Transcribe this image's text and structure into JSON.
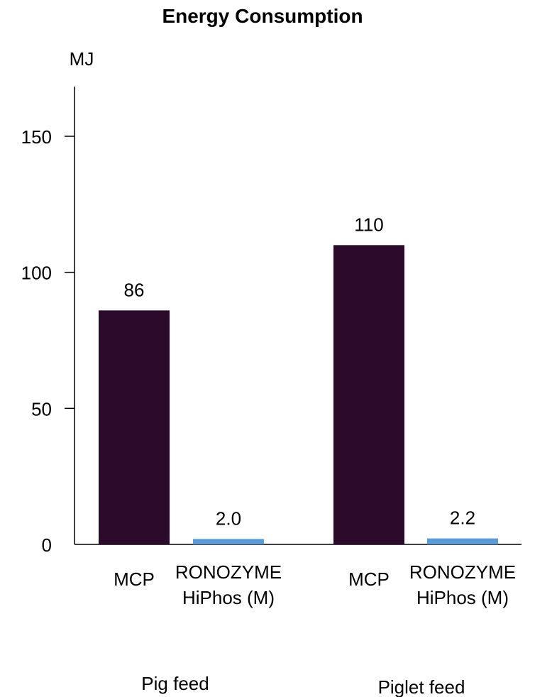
{
  "chart_data": {
    "type": "bar",
    "title": "Energy Consumption",
    "ylabel": "MJ",
    "ylim": [
      0,
      175
    ],
    "yticks": [
      0,
      50,
      100,
      150
    ],
    "groups": [
      {
        "name": "Pig feed",
        "bars": [
          {
            "label": [
              "MCP"
            ],
            "value": 86,
            "value_label": "86",
            "color": "#2b0a2b"
          },
          {
            "label": [
              "RONOZYME",
              "HiPhos (M)"
            ],
            "value": 2.0,
            "value_label": "2.0",
            "color": "#5b9bd5"
          }
        ]
      },
      {
        "name": "Piglet feed",
        "bars": [
          {
            "label": [
              "MCP"
            ],
            "value": 110,
            "value_label": "110",
            "color": "#2b0a2b"
          },
          {
            "label": [
              "RONOZYME",
              "HiPhos (M)"
            ],
            "value": 2.2,
            "value_label": "2.2",
            "color": "#5b9bd5"
          }
        ]
      }
    ],
    "grid": false,
    "legend": "none"
  }
}
